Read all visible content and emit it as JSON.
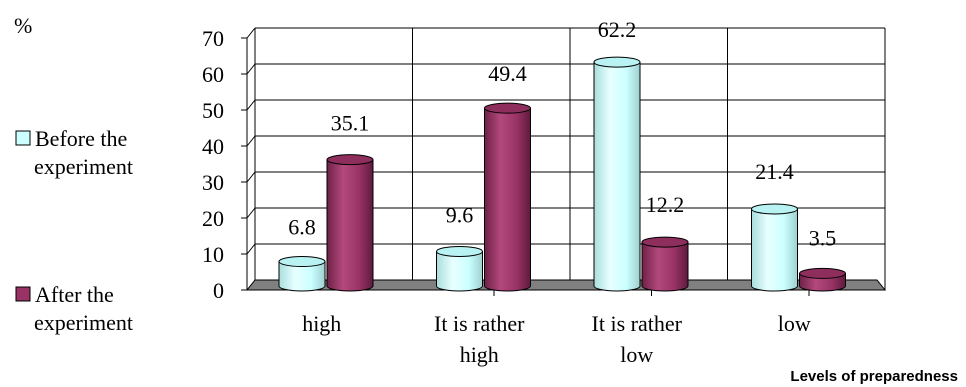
{
  "chart_data": {
    "type": "bar",
    "ylabel": "%",
    "xlabel": "Levels of preparedness",
    "ylim": [
      0,
      70
    ],
    "yticks": [
      0,
      10,
      20,
      30,
      40,
      50,
      60,
      70
    ],
    "grid": true,
    "legend_position": "left",
    "categories": [
      [
        "high"
      ],
      [
        "It is rather",
        "high"
      ],
      [
        "It is rather",
        "low"
      ],
      [
        "low"
      ]
    ],
    "series": [
      {
        "name": "Before the experiment",
        "legend_lines": [
          "Before the",
          "experiment"
        ],
        "color": "#CCFFFF",
        "values": [
          6.8,
          9.6,
          62.2,
          21.4
        ]
      },
      {
        "name": "After the experiment",
        "legend_lines": [
          "After the",
          "experiment"
        ],
        "color": "#993366",
        "values": [
          35.1,
          49.4,
          12.2,
          3.5
        ]
      }
    ]
  }
}
